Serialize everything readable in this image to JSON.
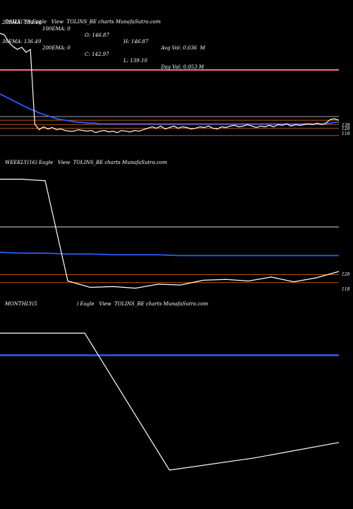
{
  "header": {
    "row1": [
      "20EMA: 134.44",
      "100EMA: 0",
      "O: 146.87",
      "H: 146.87",
      "Avg Vol: 0.036  M"
    ],
    "row2": [
      "30EMA: 136.49",
      "200EMA: 0",
      "C: 142.97",
      "L: 139.10",
      "Day Vol: 0.053 M"
    ]
  },
  "panels": {
    "daily_title": "DAILY(79) Eagle   View  TOLINS_BE charts MunafaSutra.com",
    "weekly_title": "WEEKLY(16) Eagle   View  TOLINS_BE charts MunafaSutra.com",
    "monthly_title": "MONTHLY(5                         ) Eagle   View  TOLINS_BE charts MunafaSutra.com"
  },
  "colors": {
    "price": "#ffffff",
    "ema": "#2d5bff",
    "pink": "#ff6fa0",
    "grey": "#a0a0a0",
    "orange": "#b05a1a",
    "light_grey": "#d8d8d8"
  },
  "chart_data": [
    {
      "type": "line",
      "name": "daily",
      "x": [
        0,
        1,
        2,
        3,
        4,
        5,
        6,
        7,
        8,
        9,
        10,
        11,
        12,
        13,
        14,
        15,
        16,
        17,
        18,
        19,
        20,
        21,
        22,
        23,
        24,
        25,
        26,
        27,
        28,
        29,
        30,
        31,
        32,
        33,
        34,
        35,
        36,
        37,
        38,
        39,
        40,
        41,
        42,
        43,
        44,
        45,
        46,
        47,
        48,
        49,
        50,
        51,
        52,
        53,
        54,
        55,
        56,
        57,
        58,
        59,
        60,
        61,
        62,
        63,
        64,
        65,
        66,
        67,
        68,
        69,
        70,
        71,
        72,
        73,
        74,
        75,
        76,
        77,
        78
      ],
      "price": [
        258,
        256,
        246,
        240,
        236,
        239,
        232,
        236,
        134,
        126,
        130,
        127,
        129,
        126,
        127,
        125,
        124,
        124,
        126,
        125,
        124,
        125,
        122,
        124,
        125,
        123,
        124,
        122,
        125,
        124,
        123,
        125,
        124,
        126,
        128,
        130,
        128,
        131,
        127,
        129,
        131,
        128,
        130,
        129,
        127,
        128,
        130,
        129,
        131,
        128,
        127,
        130,
        129,
        131,
        132,
        130,
        131,
        133,
        131,
        129,
        131,
        130,
        132,
        130,
        133,
        132,
        134,
        131,
        133,
        132,
        133,
        134,
        133,
        135,
        133,
        135,
        140,
        141,
        139
      ],
      "ema": [
        175,
        172,
        169,
        166,
        163,
        160,
        157,
        154,
        152,
        149,
        147,
        145,
        143,
        141,
        140,
        139,
        138,
        137,
        136,
        136,
        135,
        135,
        135,
        134,
        134,
        134,
        134,
        134,
        134,
        134,
        134,
        134,
        134,
        134,
        134,
        134,
        134,
        134,
        134,
        134,
        134,
        134,
        134,
        134,
        134,
        134,
        134,
        134,
        134,
        134,
        134,
        134,
        134,
        134,
        134,
        134,
        134,
        134,
        134,
        134,
        134,
        134,
        134,
        134,
        134,
        134,
        134,
        134,
        134,
        134,
        134,
        134,
        134,
        134,
        134,
        134,
        135,
        136,
        136
      ],
      "hlines": [
        {
          "value": 208,
          "color": "pink"
        },
        {
          "value": 144,
          "color": "grey"
        },
        {
          "value": 139,
          "color": "orange"
        },
        {
          "value": 133,
          "color": "orange"
        },
        {
          "value": 128,
          "color": "orange"
        },
        {
          "value": 118,
          "color": "orange"
        }
      ],
      "tick_labels": [
        "139",
        "128",
        "118"
      ]
    },
    {
      "type": "line",
      "name": "weekly",
      "x": [
        0,
        1,
        2,
        3,
        4,
        5,
        6,
        7,
        8,
        9,
        10,
        11,
        12,
        13,
        14,
        15
      ],
      "price": [
        258,
        258,
        256,
        130,
        122,
        123,
        121,
        126,
        125,
        131,
        132,
        130,
        135,
        129,
        134,
        142
      ],
      "ema": [
        166,
        165,
        165,
        164,
        164,
        163,
        163,
        163,
        162,
        162,
        162,
        162,
        162,
        162,
        162,
        162
      ],
      "hlines": [
        {
          "value": 198,
          "color": "light_grey"
        },
        {
          "value": 138,
          "color": "orange"
        },
        {
          "value": 128,
          "color": "orange"
        }
      ],
      "tick_labels": [
        "128",
        "118"
      ]
    },
    {
      "type": "line",
      "name": "monthly",
      "x": [
        0,
        1,
        2,
        3,
        4
      ],
      "price": [
        250,
        250,
        126,
        137,
        151
      ],
      "ema": [
        230,
        230,
        230,
        230,
        230
      ],
      "hlines": [],
      "tick_labels": []
    }
  ]
}
